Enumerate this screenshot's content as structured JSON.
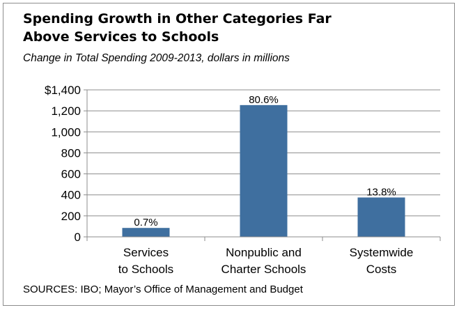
{
  "title_line1": "Spending Growth in Other Categories Far",
  "title_line2": "Above Services to Schools",
  "subtitle": "Change in Total Spending 2009-2013, dollars in millions",
  "source": "SOURCES: IBO; Mayor’s Office of Management and Budget",
  "bar_color": "#3f6f9f",
  "chart_data": {
    "type": "bar",
    "title": "Spending Growth in Other Categories Far Above Services to Schools",
    "subtitle": "Change in Total Spending 2009-2013, dollars in millions",
    "categories": [
      [
        "Services",
        "to Schools"
      ],
      [
        "Nonpublic and",
        "Charter Schools"
      ],
      [
        "Systemwide",
        "Costs"
      ]
    ],
    "values": [
      85,
      1255,
      375
    ],
    "data_labels": [
      "0.7%",
      "80.6%",
      "13.8%"
    ],
    "ylim": [
      0,
      1400
    ],
    "yticks": [
      0,
      200,
      400,
      600,
      800,
      1000,
      1200,
      1400
    ],
    "ytick_labels": [
      "0",
      "200",
      "400",
      "600",
      "800",
      "1,000",
      "1,200",
      "$1,400"
    ],
    "grid": true,
    "xlabel": "",
    "ylabel": ""
  }
}
